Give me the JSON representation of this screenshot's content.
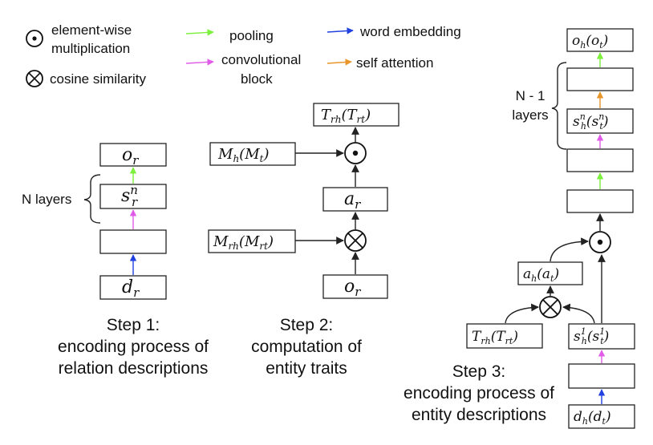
{
  "legend": {
    "element_wise": [
      "element-wise",
      "multiplication"
    ],
    "cosine": "cosine similarity",
    "pooling": "pooling",
    "convolutional": [
      "convolutional",
      "block"
    ],
    "word_embedding": "word embedding",
    "self_attention": "self attention"
  },
  "colors": {
    "pooling": "#7cf03c",
    "convolutional": "#e05ce8",
    "word_embedding": "#2040e0",
    "self_attention": "#e8962a",
    "line": "#222222"
  },
  "step1": {
    "o": "o",
    "o_sub": "r",
    "s": "s",
    "s_sub": "r",
    "s_sup": "n",
    "d": "d",
    "d_sub": "r",
    "layers_label": "N layers",
    "caption": [
      "Step 1:",
      "encoding process of",
      "relation descriptions"
    ]
  },
  "step2": {
    "T": "T",
    "T_sub": "rh",
    "T_alt": "T",
    "T_alt_sub": "rt",
    "M": "M",
    "M_sub": "h",
    "M_alt": "M",
    "M_alt_sub": "t",
    "a": "a",
    "a_sub": "r",
    "Mr": "M",
    "Mr_sub": "rh",
    "Mr_alt": "M",
    "Mr_alt_sub": "rt",
    "o": "o",
    "o_sub": "r",
    "caption": [
      "Step 2:",
      "computation of",
      "entity traits"
    ]
  },
  "step3": {
    "o": "o",
    "o_sub": "h",
    "o_alt": "o",
    "o_alt_sub": "t",
    "s": "s",
    "s_sub": "h",
    "s_sup": "n",
    "s_alt": "s",
    "s_alt_sub": "t",
    "s_alt_sup": "n",
    "layers_label": [
      "N - 1",
      "layers"
    ],
    "a": "a",
    "a_sub": "h",
    "a_alt": "a",
    "a_alt_sub": "t",
    "T": "T",
    "T_sub": "rh",
    "T_alt": "T",
    "T_alt_sub": "rt",
    "s1": "s",
    "s1_sub": "h",
    "s1_sup": "1",
    "s1_alt": "s",
    "s1_alt_sub": "t",
    "s1_alt_sup": "1",
    "d": "d",
    "d_sub": "h",
    "d_alt": "d",
    "d_alt_sub": "t",
    "caption": [
      "Step 3:",
      "encoding process of",
      "entity descriptions"
    ]
  },
  "symbols": {
    "open": "(",
    "close": ")",
    "dot": "•",
    "times": "×"
  }
}
